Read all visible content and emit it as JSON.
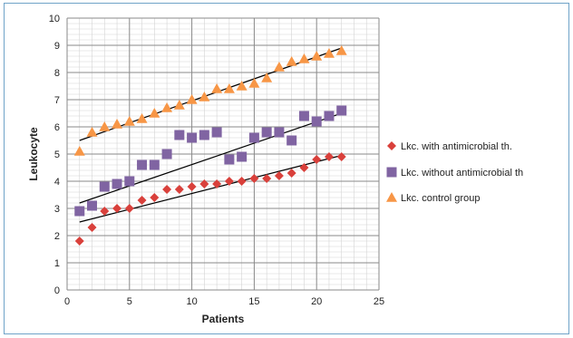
{
  "chart_data": {
    "type": "scatter",
    "xlabel": "Patients",
    "ylabel": "Leukocyte",
    "xlim": [
      0,
      25
    ],
    "ylim": [
      0,
      10
    ],
    "x_ticks": [
      0,
      5,
      10,
      15,
      20,
      25
    ],
    "y_ticks": [
      0,
      1,
      2,
      3,
      4,
      5,
      6,
      7,
      8,
      9,
      10
    ],
    "grid": true,
    "legend_position": "right",
    "series": [
      {
        "name": "Lkc. with antimicrobial th.",
        "marker": "diamond",
        "color": "#d9403b",
        "x": [
          1,
          2,
          3,
          4,
          5,
          6,
          7,
          8,
          9,
          10,
          11,
          12,
          13,
          14,
          15,
          16,
          17,
          18,
          19,
          20,
          21,
          22
        ],
        "y": [
          1.8,
          2.3,
          2.9,
          3.0,
          3.0,
          3.3,
          3.4,
          3.7,
          3.7,
          3.8,
          3.9,
          3.9,
          4.0,
          4.0,
          4.1,
          4.1,
          4.2,
          4.3,
          4.5,
          4.8,
          4.9,
          4.9
        ],
        "trend": [
          2.5,
          4.95
        ]
      },
      {
        "name": "Lkc. without antimicrobial th",
        "marker": "square",
        "color": "#8064a2",
        "x": [
          1,
          2,
          3,
          4,
          5,
          6,
          7,
          8,
          9,
          10,
          11,
          12,
          13,
          14,
          15,
          16,
          17,
          18,
          19,
          20,
          21,
          22
        ],
        "y": [
          2.9,
          3.1,
          3.8,
          3.9,
          4.0,
          4.6,
          4.6,
          5.0,
          5.7,
          5.6,
          5.7,
          5.8,
          4.8,
          4.9,
          5.6,
          5.8,
          5.8,
          5.5,
          6.4,
          6.2,
          6.4,
          6.6
        ],
        "trend": [
          3.2,
          6.5
        ]
      },
      {
        "name": "Lkc. control group",
        "marker": "triangle",
        "color": "#f79646",
        "x": [
          1,
          2,
          3,
          4,
          5,
          6,
          7,
          8,
          9,
          10,
          11,
          12,
          13,
          14,
          15,
          16,
          17,
          18,
          19,
          20,
          21,
          22
        ],
        "y": [
          5.1,
          5.8,
          6.0,
          6.1,
          6.2,
          6.3,
          6.5,
          6.7,
          6.8,
          7.0,
          7.1,
          7.4,
          7.4,
          7.5,
          7.6,
          7.8,
          8.2,
          8.4,
          8.5,
          8.6,
          8.7,
          8.8
        ],
        "trend": [
          5.5,
          8.9
        ]
      }
    ]
  }
}
